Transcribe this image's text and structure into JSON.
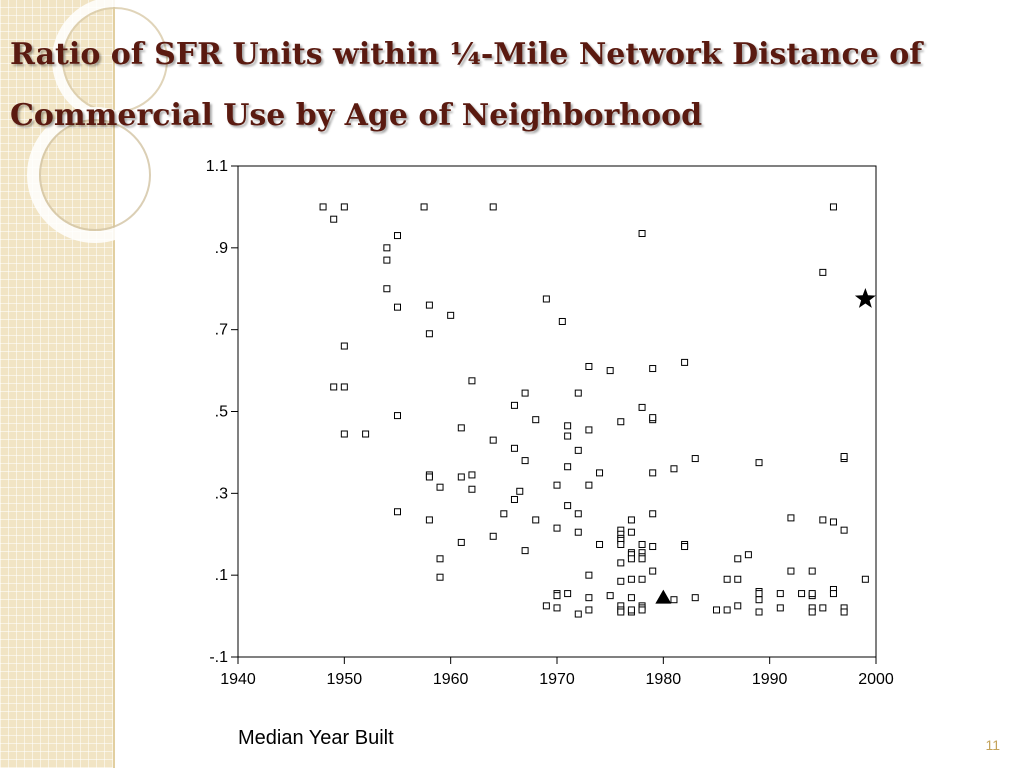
{
  "slide": {
    "title": "Ratio of SFR Units within ¼-Mile Network Distance of Commercial Use by Age of Neighborhood",
    "page_number": "11",
    "colors": {
      "title": "#5a1a10",
      "background_band": "#f1e4c4",
      "page_number": "#c4a35a"
    }
  },
  "chart_data": {
    "type": "scatter",
    "title": "",
    "xlabel": "Median Year Built",
    "ylabel": "",
    "xlim": [
      1940,
      2000
    ],
    "ylim": [
      -0.1,
      1.1
    ],
    "xticks": [
      1940,
      1950,
      1960,
      1970,
      1980,
      1990,
      2000
    ],
    "xtick_labels": [
      "1940",
      "1950",
      "1960",
      "1970",
      "1980",
      "1990",
      "2000"
    ],
    "yticks": [
      -0.1,
      0.1,
      0.3,
      0.5,
      0.7,
      0.9,
      1.1
    ],
    "ytick_labels": [
      "-.1",
      ".1",
      ".3",
      ".5",
      ".7",
      ".9",
      "1.1"
    ],
    "grid": false,
    "marker": "open-square",
    "points": [
      [
        1948,
        1.0
      ],
      [
        1949,
        0.97
      ],
      [
        1950,
        1.0
      ],
      [
        1957.5,
        1.0
      ],
      [
        1964,
        1.0
      ],
      [
        1996,
        1.0
      ],
      [
        1978,
        0.935
      ],
      [
        1955,
        0.93
      ],
      [
        1954,
        0.9
      ],
      [
        1954,
        0.87
      ],
      [
        1995,
        0.84
      ],
      [
        1954,
        0.8
      ],
      [
        1955,
        0.755
      ],
      [
        1958,
        0.76
      ],
      [
        1969,
        0.775
      ],
      [
        1960,
        0.735
      ],
      [
        1970.5,
        0.72
      ],
      [
        1958,
        0.69
      ],
      [
        1950,
        0.66
      ],
      [
        1982,
        0.62
      ],
      [
        1973,
        0.61
      ],
      [
        1975,
        0.6
      ],
      [
        1979,
        0.605
      ],
      [
        1962,
        0.575
      ],
      [
        1949,
        0.56
      ],
      [
        1950,
        0.56
      ],
      [
        1967,
        0.545
      ],
      [
        1972,
        0.545
      ],
      [
        1966,
        0.515
      ],
      [
        1978,
        0.51
      ],
      [
        1955,
        0.49
      ],
      [
        1968,
        0.48
      ],
      [
        1976,
        0.475
      ],
      [
        1979,
        0.48
      ],
      [
        1979,
        0.485
      ],
      [
        1961,
        0.46
      ],
      [
        1971,
        0.465
      ],
      [
        1973,
        0.455
      ],
      [
        1950,
        0.445
      ],
      [
        1952,
        0.445
      ],
      [
        1971,
        0.44
      ],
      [
        1964,
        0.43
      ],
      [
        1966,
        0.41
      ],
      [
        1972,
        0.405
      ],
      [
        1967,
        0.38
      ],
      [
        1983,
        0.385
      ],
      [
        1989,
        0.375
      ],
      [
        1997,
        0.385
      ],
      [
        1997,
        0.39
      ],
      [
        1971,
        0.365
      ],
      [
        1981,
        0.36
      ],
      [
        1974,
        0.35
      ],
      [
        1979,
        0.35
      ],
      [
        1958,
        0.345
      ],
      [
        1958,
        0.34
      ],
      [
        1961,
        0.34
      ],
      [
        1962,
        0.345
      ],
      [
        1959,
        0.315
      ],
      [
        1962,
        0.31
      ],
      [
        1966.5,
        0.305
      ],
      [
        1970,
        0.32
      ],
      [
        1973,
        0.32
      ],
      [
        1966,
        0.285
      ],
      [
        1971,
        0.27
      ],
      [
        1955,
        0.255
      ],
      [
        1965,
        0.25
      ],
      [
        1972,
        0.25
      ],
      [
        1979,
        0.25
      ],
      [
        1958,
        0.235
      ],
      [
        1968,
        0.235
      ],
      [
        1977,
        0.235
      ],
      [
        1992,
        0.24
      ],
      [
        1995,
        0.235
      ],
      [
        1996,
        0.23
      ],
      [
        1970,
        0.215
      ],
      [
        1972,
        0.205
      ],
      [
        1976,
        0.21
      ],
      [
        1977,
        0.205
      ],
      [
        1976,
        0.2
      ],
      [
        1976,
        0.19
      ],
      [
        1976,
        0.185
      ],
      [
        1964,
        0.195
      ],
      [
        1997,
        0.21
      ],
      [
        1961,
        0.18
      ],
      [
        1974,
        0.175
      ],
      [
        1976,
        0.175
      ],
      [
        1978,
        0.175
      ],
      [
        1979,
        0.17
      ],
      [
        1982,
        0.175
      ],
      [
        1982,
        0.17
      ],
      [
        1967,
        0.16
      ],
      [
        1977,
        0.155
      ],
      [
        1978,
        0.155
      ],
      [
        1977,
        0.15
      ],
      [
        1978,
        0.145
      ],
      [
        1977,
        0.14
      ],
      [
        1978,
        0.14
      ],
      [
        1988,
        0.15
      ],
      [
        1987,
        0.14
      ],
      [
        1976,
        0.13
      ],
      [
        1959,
        0.14
      ],
      [
        1992,
        0.11
      ],
      [
        1994,
        0.11
      ],
      [
        1979,
        0.11
      ],
      [
        1973,
        0.1
      ],
      [
        1959,
        0.095
      ],
      [
        1999,
        0.09
      ],
      [
        1978,
        0.09
      ],
      [
        1977,
        0.09
      ],
      [
        1976,
        0.085
      ],
      [
        1986,
        0.09
      ],
      [
        1987,
        0.09
      ],
      [
        1970,
        0.055
      ],
      [
        1970,
        0.05
      ],
      [
        1971,
        0.055
      ],
      [
        1975,
        0.05
      ],
      [
        1989,
        0.06
      ],
      [
        1989,
        0.055
      ],
      [
        1991,
        0.055
      ],
      [
        1993,
        0.055
      ],
      [
        1994,
        0.05
      ],
      [
        1994,
        0.055
      ],
      [
        1996,
        0.065
      ],
      [
        1996,
        0.055
      ],
      [
        1973,
        0.045
      ],
      [
        1977,
        0.045
      ],
      [
        1983,
        0.045
      ],
      [
        1989,
        0.04
      ],
      [
        1981,
        0.04
      ],
      [
        1969,
        0.025
      ],
      [
        1970,
        0.02
      ],
      [
        1976,
        0.025
      ],
      [
        1978,
        0.025
      ],
      [
        1978,
        0.02
      ],
      [
        1976,
        0.015
      ],
      [
        1976,
        0.01
      ],
      [
        1977,
        0.01
      ],
      [
        1977,
        0.015
      ],
      [
        1978,
        0.015
      ],
      [
        1973,
        0.015
      ],
      [
        1972,
        0.005
      ],
      [
        1985,
        0.015
      ],
      [
        1986,
        0.015
      ],
      [
        1987,
        0.025
      ],
      [
        1989,
        0.01
      ],
      [
        1991,
        0.02
      ],
      [
        1994,
        0.02
      ],
      [
        1994,
        0.01
      ],
      [
        1995,
        0.02
      ],
      [
        1997,
        0.02
      ],
      [
        1997,
        0.01
      ]
    ],
    "highlight_points": [
      {
        "marker": "star",
        "x": 1999,
        "y": 0.775
      },
      {
        "marker": "triangle",
        "x": 1980,
        "y": 0.045
      }
    ]
  }
}
